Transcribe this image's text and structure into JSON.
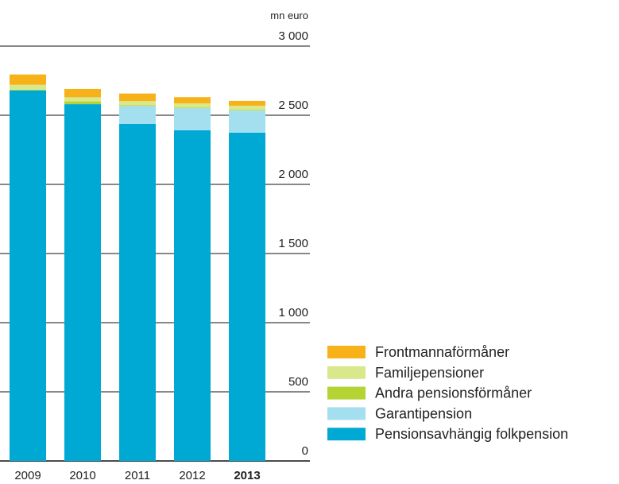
{
  "chart_data": {
    "type": "bar",
    "stacked": true,
    "unit_label": "mn euro",
    "categories": [
      "2009",
      "2010",
      "2011",
      "2012",
      "2013"
    ],
    "highlight_category": "2013",
    "series": [
      {
        "name": "Pensionsavhängig folkpension",
        "color": "#00a9d4",
        "values": [
          2680,
          2580,
          2437,
          2391,
          2374
        ]
      },
      {
        "name": "Garantipension",
        "color": "#a4dff0",
        "values": [
          0,
          0,
          130,
          160,
          160
        ]
      },
      {
        "name": "Andra pensionsförmåner",
        "color": "#b6d334",
        "values": [
          5,
          20,
          5,
          5,
          5
        ]
      },
      {
        "name": "Familjepensioner",
        "color": "#d9e88a",
        "values": [
          35,
          30,
          30,
          30,
          30
        ]
      },
      {
        "name": "Frontmannaförmåner",
        "color": "#f7b21a",
        "values": [
          75,
          60,
          55,
          45,
          35
        ]
      }
    ],
    "ylim": [
      0,
      3000
    ],
    "yticks": [
      0,
      500,
      {
        "value": 1000,
        "label": "1 000"
      },
      {
        "value": 1500,
        "label": "1 500"
      },
      {
        "value": 2000,
        "label": "2 000"
      },
      {
        "value": 2500,
        "label": "2 500"
      },
      {
        "value": 3000,
        "label": "3 000"
      }
    ],
    "grid": true
  }
}
